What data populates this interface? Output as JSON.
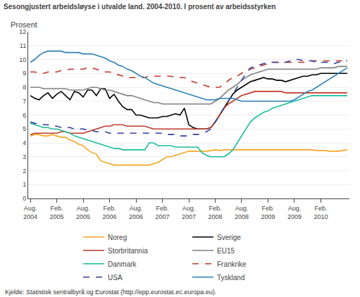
{
  "chart_data": {
    "type": "line",
    "title": "Sesongjustert arbeidsløyse i utvalde land. 2004-2010. I prosent av arbeidsstyrken",
    "ylabel": "Prosent",
    "annotations": [
      "Kjelde: Statistisk sentralbyrå og Eurostat (http://epp.eurostat.ec.europa.eu)."
    ],
    "categories": [
      "Aug.\n2004",
      null,
      null,
      null,
      null,
      null,
      "Feb.\n2005",
      null,
      null,
      null,
      null,
      null,
      "Aug.\n2005",
      null,
      null,
      null,
      null,
      null,
      "Feb.\n2006",
      null,
      null,
      null,
      null,
      null,
      "Aug.\n2006",
      null,
      null,
      null,
      null,
      null,
      "Feb.\n2007",
      null,
      null,
      null,
      null,
      null,
      "Aug.\n2007",
      null,
      null,
      null,
      null,
      null,
      "Feb.\n2008",
      null,
      null,
      null,
      null,
      null,
      "Aug.\n2008",
      null,
      null,
      null,
      null,
      null,
      "Feb.\n2009",
      null,
      null,
      null,
      null,
      null,
      "Aug.\n2009",
      null,
      null,
      null,
      null,
      null,
      "Feb.\n2010",
      null,
      null,
      null,
      null,
      null,
      null
    ],
    "ylim": [
      0,
      12
    ],
    "yticks": [
      0,
      1,
      2,
      3,
      4,
      5,
      6,
      7,
      8,
      9,
      10,
      11,
      12
    ],
    "grid": true,
    "legend": "bottom",
    "series": [
      {
        "name": "Noreg",
        "color": "#F5A623",
        "line_style": "solid",
        "values": [
          4.5,
          4.6,
          4.6,
          4.5,
          4.5,
          4.6,
          4.5,
          4.4,
          4.4,
          4.2,
          4.1,
          3.9,
          3.8,
          3.5,
          3.3,
          3.2,
          2.7,
          2.6,
          2.5,
          2.4,
          2.4,
          2.4,
          2.4,
          2.4,
          2.4,
          2.4,
          2.4,
          2.4,
          2.5,
          2.6,
          2.8,
          3.0,
          3.0,
          3.1,
          3.2,
          3.3,
          3.4,
          3.4,
          3.4,
          3.4,
          3.4,
          3.45,
          3.5,
          3.45,
          3.5,
          3.5,
          3.5,
          3.5,
          3.5,
          3.5,
          3.5,
          3.5,
          3.5,
          3.5,
          3.5,
          3.5,
          3.5,
          3.5,
          3.5,
          3.5,
          3.5,
          3.5,
          3.5,
          3.5,
          3.5,
          3.45,
          3.45,
          3.45,
          3.4,
          3.4,
          3.4,
          3.45,
          3.5
        ]
      },
      {
        "name": "Sverige",
        "color": "#000000",
        "line_style": "solid",
        "values": [
          7.4,
          7.2,
          7.1,
          7.4,
          7.6,
          7.2,
          7.5,
          7.7,
          7.4,
          7.1,
          7.7,
          7.6,
          7.3,
          7.8,
          7.8,
          7.4,
          7.9,
          7.9,
          7.2,
          7.5,
          7.0,
          6.6,
          6.4,
          6.4,
          6.0,
          6.0,
          5.9,
          5.8,
          5.8,
          5.8,
          5.9,
          5.9,
          6.0,
          6.1,
          6.0,
          6.5,
          5.3,
          5.1,
          5.0,
          5.0,
          5.0,
          5.1,
          5.5,
          6.0,
          6.5,
          7.0,
          7.5,
          7.8,
          8.0,
          8.2,
          8.4,
          8.5,
          8.6,
          8.7,
          8.6,
          8.6,
          8.5,
          8.5,
          8.4,
          8.5,
          8.6,
          8.7,
          8.8,
          8.8,
          8.9,
          8.9,
          9.0,
          9.0,
          9.0,
          9.0,
          9.0,
          9.0,
          9.0
        ]
      },
      {
        "name": "Storbritannia",
        "color": "#C0392B",
        "line_style": "solid",
        "values": [
          4.6,
          4.7,
          4.7,
          4.7,
          4.7,
          4.7,
          4.7,
          4.8,
          4.8,
          4.7,
          4.7,
          4.7,
          4.7,
          4.8,
          4.9,
          5.0,
          5.1,
          5.2,
          5.2,
          5.3,
          5.3,
          5.3,
          5.2,
          5.2,
          5.2,
          5.2,
          5.2,
          5.1,
          5.0,
          5.0,
          5.0,
          5.0,
          5.0,
          5.0,
          5.0,
          5.0,
          5.0,
          5.0,
          5.0,
          5.0,
          5.0,
          5.1,
          5.5,
          6.0,
          6.5,
          6.8,
          7.0,
          7.2,
          7.4,
          7.5,
          7.6,
          7.7,
          7.7,
          7.7,
          7.7,
          7.7,
          7.7,
          7.7,
          7.6,
          7.6,
          7.6,
          7.6,
          7.6,
          7.6,
          7.6,
          7.6,
          7.6,
          7.6,
          7.6,
          7.6,
          7.6,
          7.6,
          7.6
        ]
      },
      {
        "name": "EU15",
        "color": "#808080",
        "line_style": "solid",
        "values": [
          8.0,
          8.0,
          8.0,
          7.9,
          7.9,
          7.9,
          7.9,
          7.9,
          7.9,
          7.8,
          7.8,
          7.8,
          7.8,
          7.9,
          8.0,
          8.0,
          7.9,
          7.8,
          7.8,
          7.7,
          7.6,
          7.5,
          7.4,
          7.4,
          7.3,
          7.2,
          7.1,
          7.0,
          6.9,
          6.9,
          6.8,
          6.8,
          6.8,
          6.8,
          6.8,
          6.8,
          6.8,
          6.8,
          6.8,
          6.8,
          6.8,
          6.8,
          7.0,
          7.2,
          7.5,
          7.8,
          8.0,
          8.2,
          8.5,
          8.7,
          8.9,
          9.0,
          9.1,
          9.2,
          9.3,
          9.3,
          9.3,
          9.3,
          9.3,
          9.3,
          9.3,
          9.3,
          9.3,
          9.3,
          9.3,
          9.3,
          9.4,
          9.4,
          9.4,
          9.4,
          9.5,
          9.5,
          9.5
        ]
      },
      {
        "name": "Danmark",
        "color": "#1ABC9C",
        "line_style": "solid",
        "values": [
          5.4,
          5.3,
          5.2,
          5.1,
          5.1,
          5.0,
          5.0,
          4.9,
          4.8,
          4.7,
          4.5,
          4.4,
          4.3,
          4.2,
          4.1,
          4.0,
          3.9,
          3.8,
          3.7,
          3.6,
          3.6,
          3.5,
          3.5,
          3.5,
          3.5,
          3.5,
          3.5,
          4.0,
          4.0,
          3.8,
          3.8,
          3.8,
          3.8,
          3.7,
          3.7,
          3.7,
          3.7,
          3.7,
          3.7,
          3.3,
          3.1,
          3.0,
          3.0,
          3.0,
          3.0,
          3.2,
          3.5,
          4.0,
          4.5,
          5.0,
          5.5,
          5.8,
          6.0,
          6.2,
          6.3,
          6.5,
          6.6,
          6.7,
          6.8,
          6.9,
          7.0,
          7.1,
          7.2,
          7.3,
          7.4,
          7.4,
          7.4,
          7.4,
          7.4,
          7.4,
          7.4,
          7.4,
          7.4
        ]
      },
      {
        "name": "Frankrike",
        "color": "#C0392B",
        "line_style": "dashed",
        "values": [
          9.1,
          9.1,
          9.0,
          9.0,
          9.1,
          9.1,
          9.1,
          9.2,
          9.2,
          9.3,
          9.3,
          9.3,
          9.3,
          9.4,
          9.4,
          9.3,
          9.2,
          9.1,
          9.1,
          9.0,
          8.9,
          8.8,
          8.7,
          8.7,
          8.7,
          8.7,
          8.7,
          8.8,
          8.8,
          8.8,
          8.8,
          8.8,
          8.8,
          8.7,
          8.7,
          8.7,
          8.5,
          8.4,
          8.3,
          8.2,
          8.1,
          8.0,
          8.0,
          8.0,
          8.2,
          8.5,
          8.7,
          8.8,
          9.0,
          9.2,
          9.3,
          9.4,
          9.5,
          9.6,
          9.7,
          9.8,
          9.8,
          9.8,
          9.8,
          9.8,
          9.8,
          9.8,
          9.8,
          9.9,
          9.9,
          9.9,
          9.9,
          9.9,
          9.9,
          9.9,
          9.9,
          9.9,
          9.9
        ]
      },
      {
        "name": "USA",
        "color": "#2C3E9F",
        "line_style": "dashed",
        "values": [
          5.5,
          5.4,
          5.4,
          5.3,
          5.3,
          5.2,
          5.2,
          5.1,
          5.1,
          5.1,
          5.0,
          5.0,
          5.0,
          4.9,
          4.9,
          4.8,
          4.8,
          4.8,
          4.7,
          4.7,
          4.7,
          4.7,
          4.7,
          4.7,
          4.7,
          4.7,
          4.7,
          4.7,
          4.7,
          4.7,
          4.7,
          4.6,
          4.6,
          4.6,
          4.5,
          4.5,
          4.5,
          4.6,
          4.6,
          4.7,
          4.8,
          5.0,
          5.5,
          6.0,
          6.5,
          7.0,
          7.5,
          8.0,
          8.5,
          9.0,
          9.4,
          9.5,
          9.6,
          9.7,
          9.8,
          9.8,
          9.8,
          9.8,
          9.8,
          9.9,
          10.0,
          10.0,
          9.9,
          9.9,
          9.9,
          9.8,
          9.8,
          9.8,
          9.8,
          9.7,
          9.8,
          9.9,
          9.9
        ]
      },
      {
        "name": "Tyskland",
        "color": "#2980B9",
        "line_style": "solid",
        "values": [
          9.8,
          10.0,
          10.3,
          10.5,
          10.6,
          10.6,
          10.6,
          10.6,
          10.5,
          10.5,
          10.5,
          10.5,
          10.4,
          10.4,
          10.4,
          10.3,
          10.2,
          10.1,
          9.9,
          9.8,
          9.6,
          9.5,
          9.3,
          9.2,
          9.0,
          8.8,
          8.7,
          8.5,
          8.3,
          8.2,
          8.1,
          8.0,
          7.9,
          7.8,
          7.7,
          7.6,
          7.5,
          7.4,
          7.3,
          7.2,
          7.1,
          7.1,
          7.1,
          7.2,
          7.2,
          7.2,
          7.2,
          7.1,
          7.0,
          7.0,
          7.0,
          7.0,
          7.0,
          7.0,
          7.0,
          7.0,
          7.0,
          7.0,
          7.0,
          7.0,
          7.1,
          7.3,
          7.5,
          7.7,
          7.8,
          8.0,
          8.2,
          8.4,
          8.6,
          8.8,
          9.0,
          9.2,
          9.4
        ]
      }
    ]
  }
}
